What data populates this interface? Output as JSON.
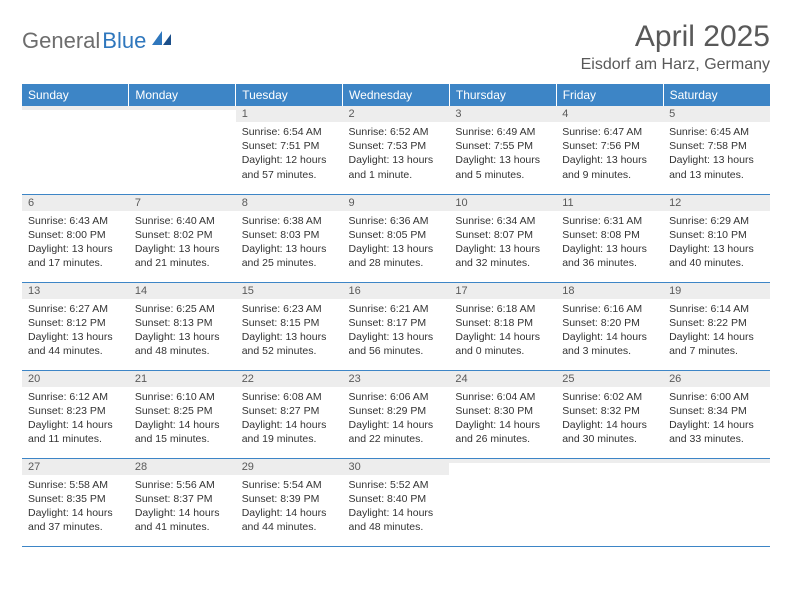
{
  "logo": {
    "text1": "General",
    "text2": "Blue"
  },
  "title": "April 2025",
  "location": "Eisdorf am Harz, Germany",
  "colors": {
    "header_bg": "#3d85c6",
    "header_text": "#ffffff",
    "daynum_bg": "#ededed",
    "daynum_text": "#5a5a5a",
    "cell_text": "#333333",
    "rule": "#3d85c6",
    "title_color": "#595959",
    "logo_gray": "#6d6d6d",
    "logo_blue": "#2f77bd"
  },
  "week_headers": [
    "Sunday",
    "Monday",
    "Tuesday",
    "Wednesday",
    "Thursday",
    "Friday",
    "Saturday"
  ],
  "weeks": [
    [
      {
        "n": "",
        "sr": "",
        "ss": "",
        "dl": ""
      },
      {
        "n": "",
        "sr": "",
        "ss": "",
        "dl": ""
      },
      {
        "n": "1",
        "sr": "Sunrise: 6:54 AM",
        "ss": "Sunset: 7:51 PM",
        "dl": "Daylight: 12 hours and 57 minutes."
      },
      {
        "n": "2",
        "sr": "Sunrise: 6:52 AM",
        "ss": "Sunset: 7:53 PM",
        "dl": "Daylight: 13 hours and 1 minute."
      },
      {
        "n": "3",
        "sr": "Sunrise: 6:49 AM",
        "ss": "Sunset: 7:55 PM",
        "dl": "Daylight: 13 hours and 5 minutes."
      },
      {
        "n": "4",
        "sr": "Sunrise: 6:47 AM",
        "ss": "Sunset: 7:56 PM",
        "dl": "Daylight: 13 hours and 9 minutes."
      },
      {
        "n": "5",
        "sr": "Sunrise: 6:45 AM",
        "ss": "Sunset: 7:58 PM",
        "dl": "Daylight: 13 hours and 13 minutes."
      }
    ],
    [
      {
        "n": "6",
        "sr": "Sunrise: 6:43 AM",
        "ss": "Sunset: 8:00 PM",
        "dl": "Daylight: 13 hours and 17 minutes."
      },
      {
        "n": "7",
        "sr": "Sunrise: 6:40 AM",
        "ss": "Sunset: 8:02 PM",
        "dl": "Daylight: 13 hours and 21 minutes."
      },
      {
        "n": "8",
        "sr": "Sunrise: 6:38 AM",
        "ss": "Sunset: 8:03 PM",
        "dl": "Daylight: 13 hours and 25 minutes."
      },
      {
        "n": "9",
        "sr": "Sunrise: 6:36 AM",
        "ss": "Sunset: 8:05 PM",
        "dl": "Daylight: 13 hours and 28 minutes."
      },
      {
        "n": "10",
        "sr": "Sunrise: 6:34 AM",
        "ss": "Sunset: 8:07 PM",
        "dl": "Daylight: 13 hours and 32 minutes."
      },
      {
        "n": "11",
        "sr": "Sunrise: 6:31 AM",
        "ss": "Sunset: 8:08 PM",
        "dl": "Daylight: 13 hours and 36 minutes."
      },
      {
        "n": "12",
        "sr": "Sunrise: 6:29 AM",
        "ss": "Sunset: 8:10 PM",
        "dl": "Daylight: 13 hours and 40 minutes."
      }
    ],
    [
      {
        "n": "13",
        "sr": "Sunrise: 6:27 AM",
        "ss": "Sunset: 8:12 PM",
        "dl": "Daylight: 13 hours and 44 minutes."
      },
      {
        "n": "14",
        "sr": "Sunrise: 6:25 AM",
        "ss": "Sunset: 8:13 PM",
        "dl": "Daylight: 13 hours and 48 minutes."
      },
      {
        "n": "15",
        "sr": "Sunrise: 6:23 AM",
        "ss": "Sunset: 8:15 PM",
        "dl": "Daylight: 13 hours and 52 minutes."
      },
      {
        "n": "16",
        "sr": "Sunrise: 6:21 AM",
        "ss": "Sunset: 8:17 PM",
        "dl": "Daylight: 13 hours and 56 minutes."
      },
      {
        "n": "17",
        "sr": "Sunrise: 6:18 AM",
        "ss": "Sunset: 8:18 PM",
        "dl": "Daylight: 14 hours and 0 minutes."
      },
      {
        "n": "18",
        "sr": "Sunrise: 6:16 AM",
        "ss": "Sunset: 8:20 PM",
        "dl": "Daylight: 14 hours and 3 minutes."
      },
      {
        "n": "19",
        "sr": "Sunrise: 6:14 AM",
        "ss": "Sunset: 8:22 PM",
        "dl": "Daylight: 14 hours and 7 minutes."
      }
    ],
    [
      {
        "n": "20",
        "sr": "Sunrise: 6:12 AM",
        "ss": "Sunset: 8:23 PM",
        "dl": "Daylight: 14 hours and 11 minutes."
      },
      {
        "n": "21",
        "sr": "Sunrise: 6:10 AM",
        "ss": "Sunset: 8:25 PM",
        "dl": "Daylight: 14 hours and 15 minutes."
      },
      {
        "n": "22",
        "sr": "Sunrise: 6:08 AM",
        "ss": "Sunset: 8:27 PM",
        "dl": "Daylight: 14 hours and 19 minutes."
      },
      {
        "n": "23",
        "sr": "Sunrise: 6:06 AM",
        "ss": "Sunset: 8:29 PM",
        "dl": "Daylight: 14 hours and 22 minutes."
      },
      {
        "n": "24",
        "sr": "Sunrise: 6:04 AM",
        "ss": "Sunset: 8:30 PM",
        "dl": "Daylight: 14 hours and 26 minutes."
      },
      {
        "n": "25",
        "sr": "Sunrise: 6:02 AM",
        "ss": "Sunset: 8:32 PM",
        "dl": "Daylight: 14 hours and 30 minutes."
      },
      {
        "n": "26",
        "sr": "Sunrise: 6:00 AM",
        "ss": "Sunset: 8:34 PM",
        "dl": "Daylight: 14 hours and 33 minutes."
      }
    ],
    [
      {
        "n": "27",
        "sr": "Sunrise: 5:58 AM",
        "ss": "Sunset: 8:35 PM",
        "dl": "Daylight: 14 hours and 37 minutes."
      },
      {
        "n": "28",
        "sr": "Sunrise: 5:56 AM",
        "ss": "Sunset: 8:37 PM",
        "dl": "Daylight: 14 hours and 41 minutes."
      },
      {
        "n": "29",
        "sr": "Sunrise: 5:54 AM",
        "ss": "Sunset: 8:39 PM",
        "dl": "Daylight: 14 hours and 44 minutes."
      },
      {
        "n": "30",
        "sr": "Sunrise: 5:52 AM",
        "ss": "Sunset: 8:40 PM",
        "dl": "Daylight: 14 hours and 48 minutes."
      },
      {
        "n": "",
        "sr": "",
        "ss": "",
        "dl": ""
      },
      {
        "n": "",
        "sr": "",
        "ss": "",
        "dl": ""
      },
      {
        "n": "",
        "sr": "",
        "ss": "",
        "dl": ""
      }
    ]
  ]
}
